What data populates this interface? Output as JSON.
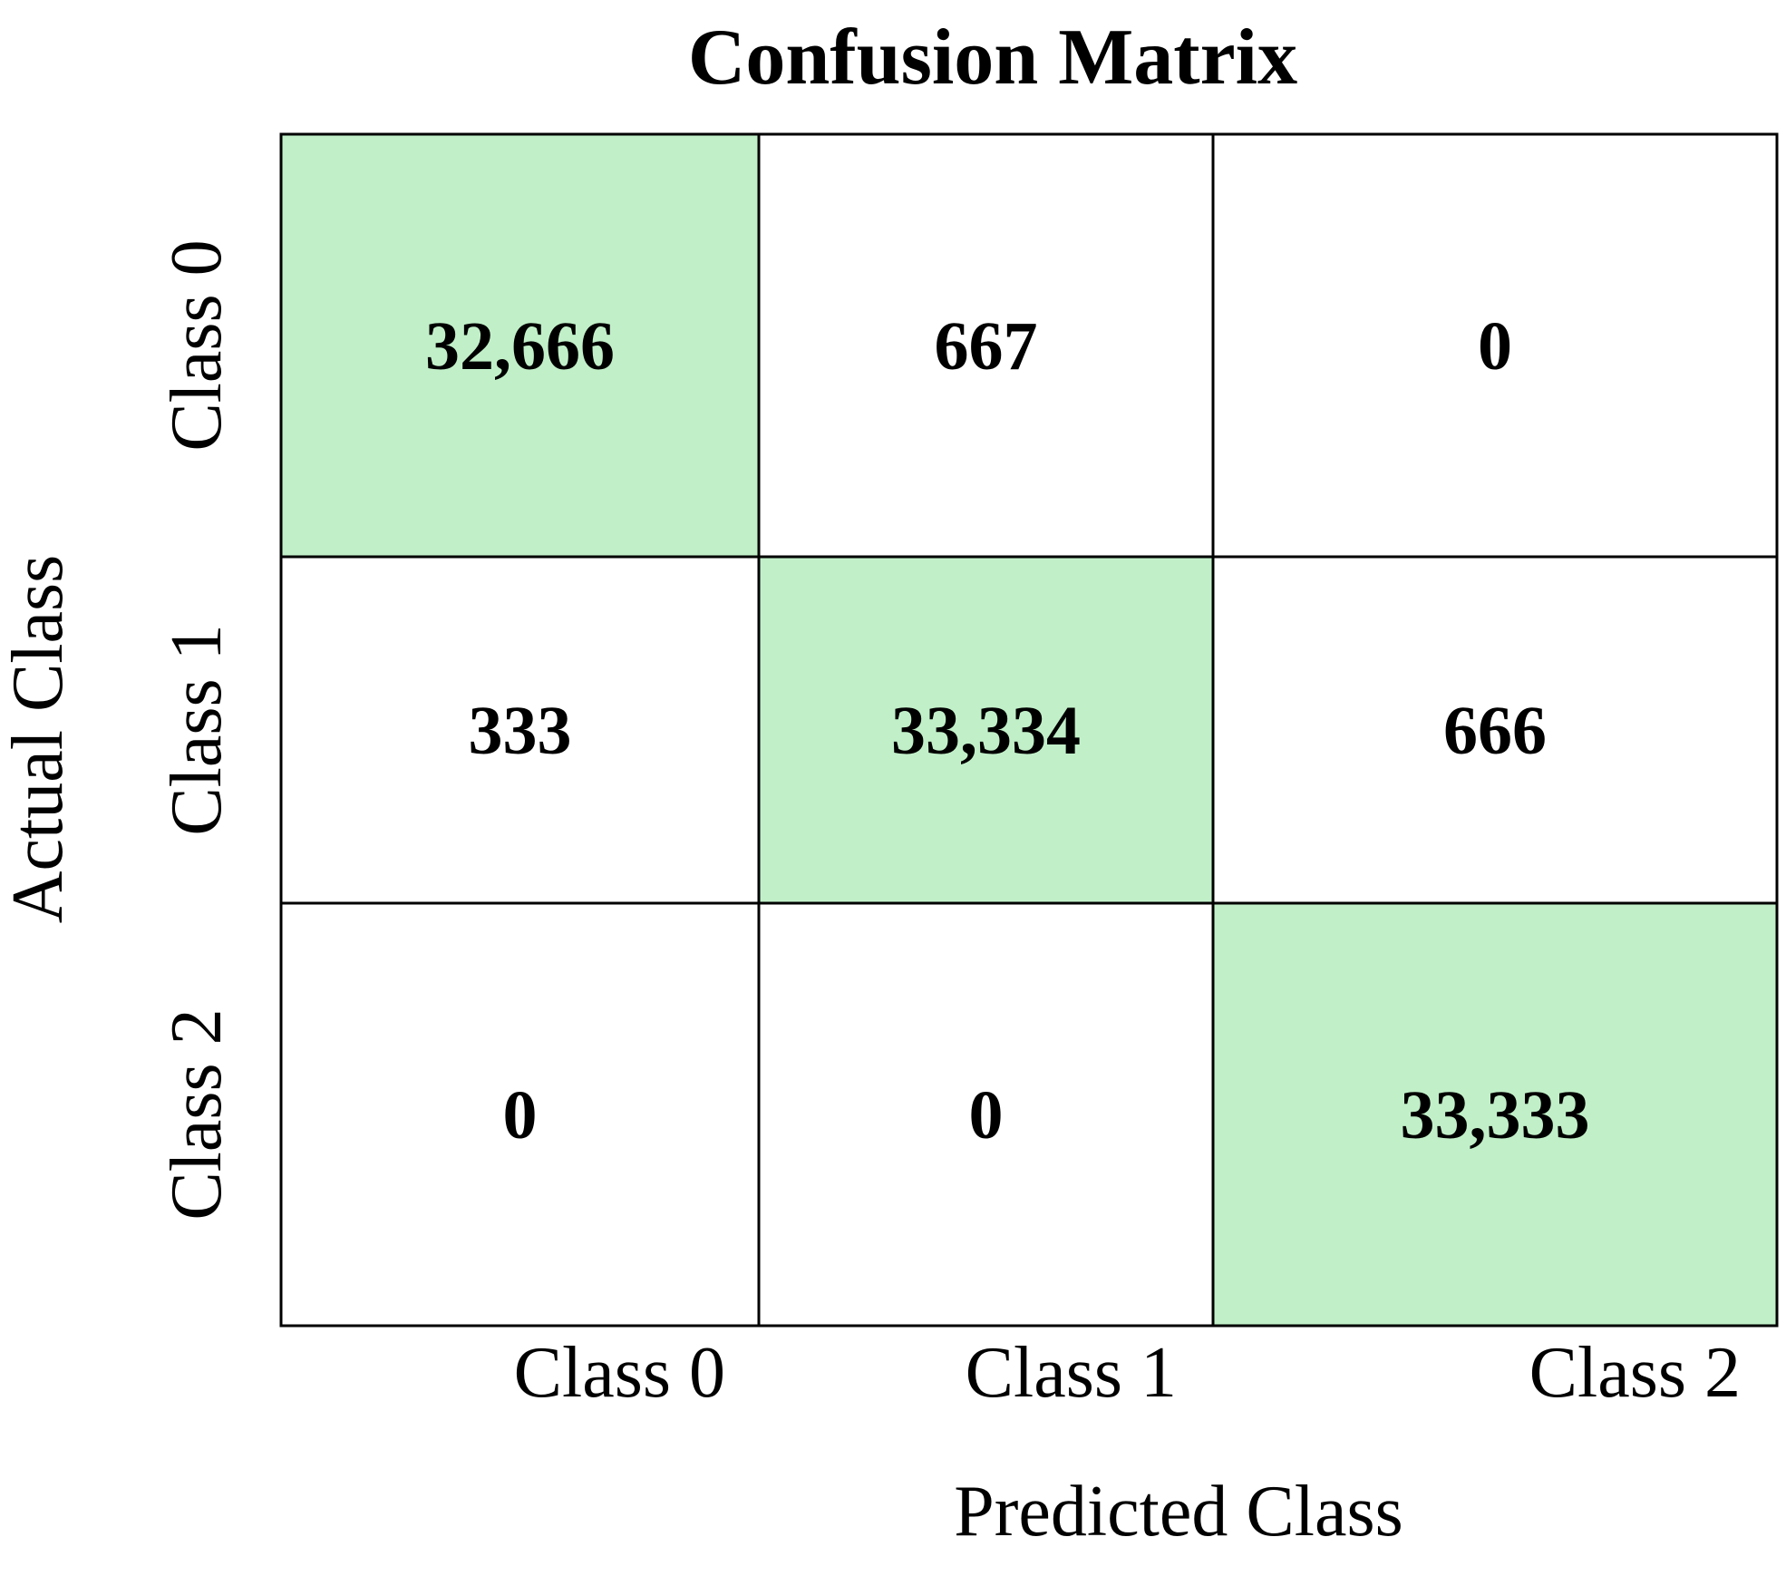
{
  "chart_data": {
    "type": "heatmap",
    "title": "Confusion Matrix",
    "xlabel": "Predicted Class",
    "ylabel": "Actual Class",
    "x_categories": [
      "Class 0",
      "Class 1",
      "Class 2"
    ],
    "y_categories": [
      "Class 0",
      "Class 1",
      "Class 2"
    ],
    "values": [
      [
        32666,
        667,
        0
      ],
      [
        333,
        33334,
        666
      ],
      [
        0,
        0,
        33333
      ]
    ],
    "value_labels": [
      [
        "32,666",
        "667",
        "0"
      ],
      [
        "333",
        "33,334",
        "666"
      ],
      [
        "0",
        "0",
        "33,333"
      ]
    ],
    "colors": {
      "diagonal": "#c1f0c8",
      "off_diagonal": "#ffffff",
      "grid_line": "#000000"
    },
    "grid": true,
    "legend": "none"
  }
}
